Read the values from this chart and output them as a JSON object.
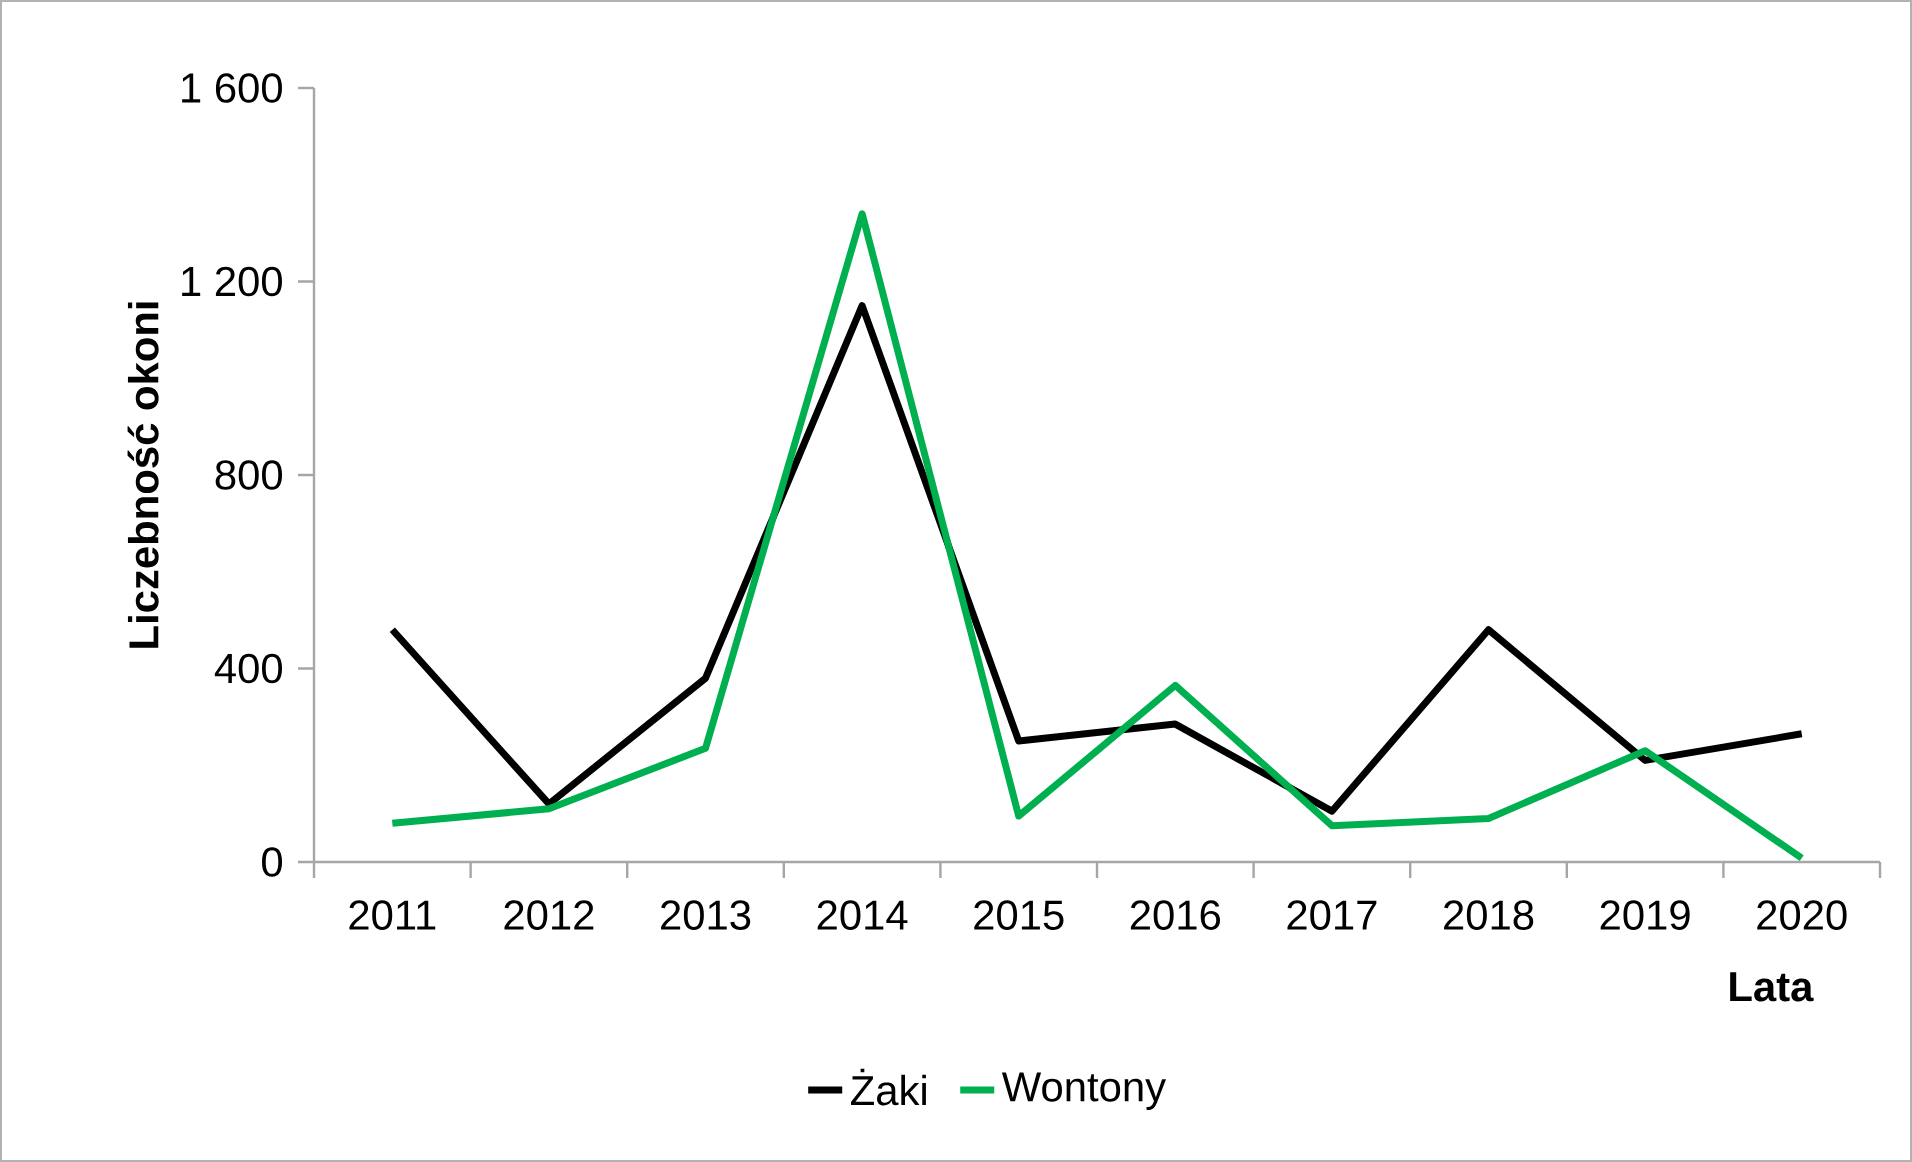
{
  "chart_data": {
    "type": "line",
    "xlabel": "Lata",
    "ylabel": "Liczebność okoni",
    "categories": [
      "2011",
      "2012",
      "2013",
      "2014",
      "2015",
      "2016",
      "2017",
      "2018",
      "2019",
      "2020"
    ],
    "series": [
      {
        "name": "Żaki",
        "color": "#000000",
        "values": [
          480,
          120,
          380,
          1150,
          250,
          285,
          105,
          480,
          210,
          265
        ]
      },
      {
        "name": "Wontony",
        "color": "#00b050",
        "values": [
          80,
          110,
          235,
          1340,
          95,
          365,
          75,
          90,
          230,
          8
        ]
      }
    ],
    "ylim": [
      0,
      1600
    ],
    "yticks": [
      0,
      400,
      800,
      {
        "value": 1200,
        "label": "1 200"
      },
      {
        "value": 1600,
        "label": "1 600"
      }
    ],
    "grid": false,
    "legend": "bottom",
    "marker": "none",
    "line_style": "solid"
  }
}
